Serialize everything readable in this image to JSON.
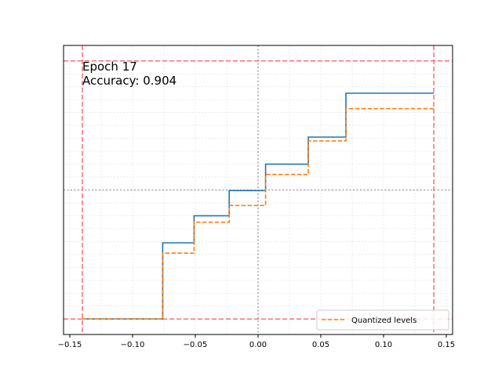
{
  "chart_data": {
    "type": "line",
    "title": "",
    "xlabel": "",
    "ylabel": "",
    "xlim": [
      -0.155,
      0.155
    ],
    "ylim": [
      -1.12,
      1.12
    ],
    "grid": true,
    "x_ticks": [
      -0.15,
      -0.1,
      -0.05,
      0.0,
      0.05,
      0.1,
      0.15
    ],
    "x_tick_labels": [
      "−0.15",
      "−0.10",
      "−0.05",
      "0.00",
      "0.05",
      "0.10",
      "0.15"
    ],
    "annotations": [
      "Epoch 17",
      "Accuracy: 0.904"
    ],
    "legend_position": "bottom-right",
    "series": [
      {
        "name": "",
        "style": "solid",
        "color": "#1f77b4",
        "x": [
          -0.14,
          -0.076,
          -0.076,
          -0.051,
          -0.051,
          -0.023,
          -0.023,
          0.006,
          0.006,
          0.04,
          0.04,
          0.07,
          0.07,
          0.14
        ],
        "y": [
          -1.0,
          -1.0,
          -0.41,
          -0.41,
          -0.2,
          -0.2,
          -0.005,
          -0.005,
          0.2,
          0.2,
          0.41,
          0.41,
          0.75,
          0.75
        ]
      },
      {
        "name": "Quantized levels",
        "style": "dashed",
        "color": "#ff7f0e",
        "x": [
          -0.14,
          -0.076,
          -0.076,
          -0.051,
          -0.051,
          -0.023,
          -0.023,
          0.006,
          0.006,
          0.04,
          0.04,
          0.07,
          0.07,
          0.14
        ],
        "y": [
          -1.0,
          -1.0,
          -0.49,
          -0.49,
          -0.25,
          -0.25,
          -0.12,
          -0.12,
          0.12,
          0.12,
          0.38,
          0.38,
          0.63,
          0.63
        ]
      }
    ],
    "reference_lines": {
      "vertical_dashed_red": [
        -0.14,
        0.14
      ],
      "horizontal_dashed_red": [
        -1.0,
        1.0
      ],
      "vertical_dotted_gray": [
        0.0
      ],
      "horizontal_dotted_gray": [
        0.0
      ],
      "red_color": "#ff6f6f",
      "gray_color": "#999999"
    }
  }
}
